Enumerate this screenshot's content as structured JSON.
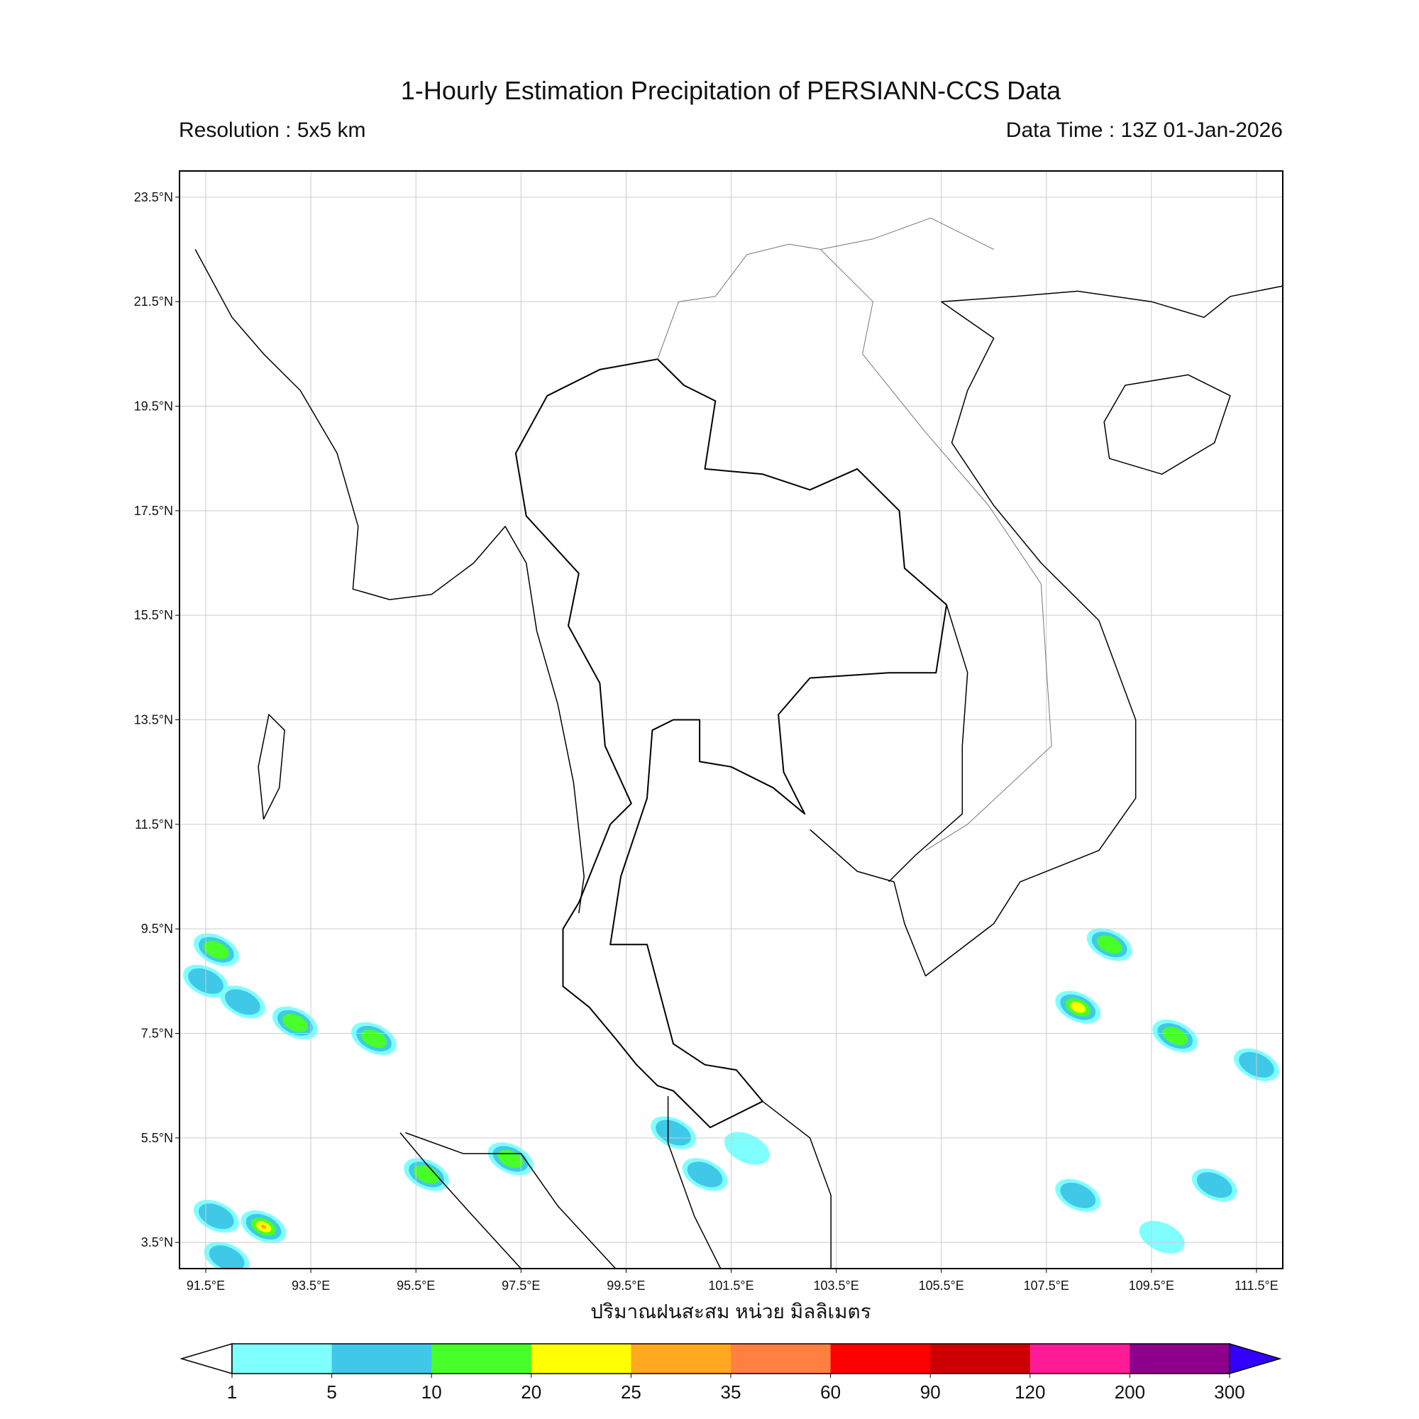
{
  "chart_data": {
    "type": "heatmap",
    "title": "1-Hourly Estimation Precipitation of PERSIANN-CCS Data",
    "subtitle_left": "Resolution : 5x5 km",
    "subtitle_right": "Data Time : 13Z 01-Jan-2026",
    "xlabel": "ปริมาณฝนสะสม หน่วย มิลลิเมตร",
    "xlim": [
      91,
      112
    ],
    "ylim": [
      3,
      24
    ],
    "grid": true,
    "x_ticks": [
      "91.5°E",
      "93.5°E",
      "95.5°E",
      "97.5°E",
      "99.5°E",
      "101.5°E",
      "103.5°E",
      "105.5°E",
      "107.5°E",
      "109.5°E",
      "111.5°E"
    ],
    "x_tick_values": [
      91.5,
      93.5,
      95.5,
      97.5,
      99.5,
      101.5,
      103.5,
      105.5,
      107.5,
      109.5,
      111.5
    ],
    "y_ticks": [
      "23.5°N",
      "21.5°N",
      "19.5°N",
      "17.5°N",
      "15.5°N",
      "13.5°N",
      "11.5°N",
      "9.5°N",
      "7.5°N",
      "5.5°N",
      "3.5°N"
    ],
    "y_tick_values": [
      23.5,
      21.5,
      19.5,
      17.5,
      15.5,
      13.5,
      11.5,
      9.5,
      7.5,
      5.5,
      3.5
    ],
    "colorbar": {
      "levels": [
        "1",
        "5",
        "10",
        "20",
        "25",
        "35",
        "60",
        "90",
        "120",
        "200",
        "300"
      ],
      "colors": [
        "#80ffff",
        "#40c8e8",
        "#48ff2a",
        "#ffff00",
        "#ffa820",
        "#ff8040",
        "#ff0000",
        "#cc0000",
        "#ff1a96",
        "#8c008c"
      ],
      "under_color": "#ffffff",
      "over_color": "#3300ff",
      "extend": "both"
    },
    "rain_cells": [
      {
        "lon": 91.7,
        "lat": 9.1,
        "max_class": 2
      },
      {
        "lon": 91.5,
        "lat": 8.5,
        "max_class": 1
      },
      {
        "lon": 92.2,
        "lat": 8.1,
        "max_class": 1
      },
      {
        "lon": 93.2,
        "lat": 7.7,
        "max_class": 2
      },
      {
        "lon": 94.7,
        "lat": 7.4,
        "max_class": 2
      },
      {
        "lon": 95.7,
        "lat": 4.8,
        "max_class": 2
      },
      {
        "lon": 97.3,
        "lat": 5.1,
        "max_class": 2
      },
      {
        "lon": 92.6,
        "lat": 3.8,
        "max_class": 4
      },
      {
        "lon": 91.7,
        "lat": 4.0,
        "max_class": 1
      },
      {
        "lon": 91.9,
        "lat": 3.2,
        "max_class": 1
      },
      {
        "lon": 108.1,
        "lat": 8.0,
        "max_class": 3
      },
      {
        "lon": 108.7,
        "lat": 9.2,
        "max_class": 2
      },
      {
        "lon": 111.5,
        "lat": 6.9,
        "max_class": 1
      },
      {
        "lon": 110.7,
        "lat": 4.6,
        "max_class": 1
      },
      {
        "lon": 108.1,
        "lat": 4.4,
        "max_class": 1
      },
      {
        "lon": 101.8,
        "lat": 5.3,
        "max_class": 0
      },
      {
        "lon": 101.0,
        "lat": 4.8,
        "max_class": 1
      },
      {
        "lon": 100.4,
        "lat": 5.6,
        "max_class": 1
      },
      {
        "lon": 109.95,
        "lat": 7.45,
        "max_class": 2
      },
      {
        "lon": 109.7,
        "lat": 3.6,
        "max_class": 0
      }
    ]
  }
}
